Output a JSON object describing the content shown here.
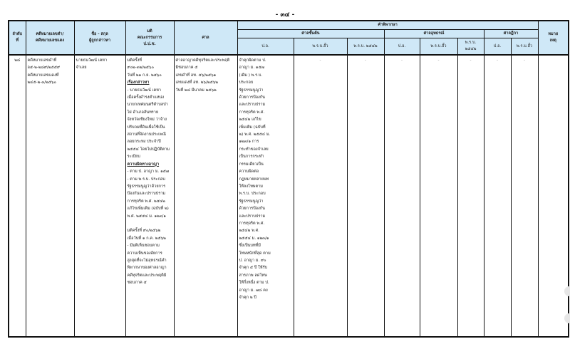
{
  "page_number": "- ๓๔ -",
  "headers": {
    "no": "ลำดับ\nที่",
    "case_no": "คดีหมายเลขดำ/\nคดีหมายเลขแดง",
    "name": "ชื่อ - สกุล\nผู้ถูกกล่าวหา",
    "resolution": "มติ\nคณะกรรมการ\nป.ป.ช.",
    "court": "ศาล",
    "judgment": "คำพิพากษา",
    "remark": "หมาย\nเหตุ",
    "court_levels": [
      "ศาลชั้นต้น",
      "ศาลอุทธรณ์",
      "ศาลฎีกา"
    ],
    "sub": [
      "ป.อ.",
      "พ.ร.บ.ฮั้ว",
      "พ.ร.บ. ๒๕๔๒",
      "ป.อ.",
      "พ.ร.บ.ฮั้ว",
      "พ.ร.บ. ๒๕๔๒",
      "ป.อ.",
      "พ.ร.บ.ฮั้ว",
      "พ.ร.บ. ๒๕๔๒"
    ]
  },
  "row": {
    "no": "๒๘",
    "case_no": "คดีหมายเลขดำที่\nอ๕-๒-๒๘๙/๒๕๕๙\nคดีหมายเลขแดงที่\n๒๔๕-๒-๓/๒๕๖๐",
    "name": "นายธนวัฒน์ เคหา\nจำเลย",
    "resolution": "มติครั้งที่\n๙๐๒-๓๒/๒๕๖๐\nวันที่ ๒๑ ก.ย. ๒๕๖๐\nเรื่องกล่าวหา\n - นายธนวัฒน์ เคหา\nเมื่อครั้งดำรงตำแหน่ง\nนายกเทศมนตรีตำบลป่า\nไผ่ อำเภอสันทราย\nจังหวัดเชียงใหม่ ว่าจ้าง\nปรับถมที่ดินเพื่อใช้เป็น\nสถานที่จัดงานประเพณี\nลอยกระทง ประจำปี\n๒๕๕๔ โดยไม่ปฏิบัติตาม\nระเบียบ\nความผิดทางอาญา\n - ตาม ป. อาญา ม. ๑๕๗\n - ตาม พ.ร.บ. ประกอบ\nรัฐธรรมนูญว่าด้วยการ\nป้องกันและปราบปราม\nการทุจริต พ.ศ. ๒๕๔๒\nแก้ไขเพิ่มเติม (ฉบับที่ ๒)\n พ.ศ. ๒๕๕๔ ม. ๑๒๓/๑\n\nมติครั้งที่ ๙๐/๒๕๖๒\nเมื่อวันที่ ๑ ก.ค. ๒๕๖๒\n - มีมติเห็นชอบตาม\nความเห็นของอัยการ\nสูงสุดที่จะไม่อุทธรณ์คำ\nพิพากษาของศาลอาญา\nคดีทุจริตและประพฤติมิ\nชอบภาค ๕",
    "court": "ศาลอาญาคดีทุจริตและประพฤติ\nมิชอบภาค ๕\nเลขดำที่ อท. ๕๖/๒๕๖๑\nเลขแดงที่ อท. ๒๖/๒๕๖๒\nวันที่ ๒๘ มีนาคม ๒๕๖๒",
    "first_po": "จำคุกผิดตาม ป.\nอาญา ม. ๑๕๗\n(เดิม ) พ.ร.บ.\nประกอบ\nรัฐธรรมนูญว่า\nด้วยการป้องกัน\nและปราบปราม\nการทุจริต พ.ศ.\n๒๕๔๒ แก้ไข\nเพิ่มเติม (ฉบับที่\n๒) พ.ศ. ๒๕๕๔ ม.\n ๑๒๓/๑ การ\nกระทำของจำเลย\nเป็นการกระทำ\nกรรมเดียวเป็น\nความผิดต่อ\nกฎหมายหลายบท\n ให้ลงโทษตาม\nพ.ร.บ. ประกอบ\nรัฐธรรมนูญว่า\nด้วยการป้องกัน\nและปราบปราม\nการทุจริต พ.ศ.\n๒๕๔๒ พ.ศ.\n๒๕๕๔ ม. ๑๒๓/๑\n ซึ่งเป็นบทที่มี\nโทษหนักที่สุด ตาม\n ป. อาญา ม. ๙๐\nจำคุก ๕ ปี ให้รับ\nสารภาพ ลดโทษ\nให้กึ่งหนึ่ง ตาม ป.\n อาญา ม. ๗๘ คง\nจำคุก ๒ ปี",
    "dash": "-"
  }
}
